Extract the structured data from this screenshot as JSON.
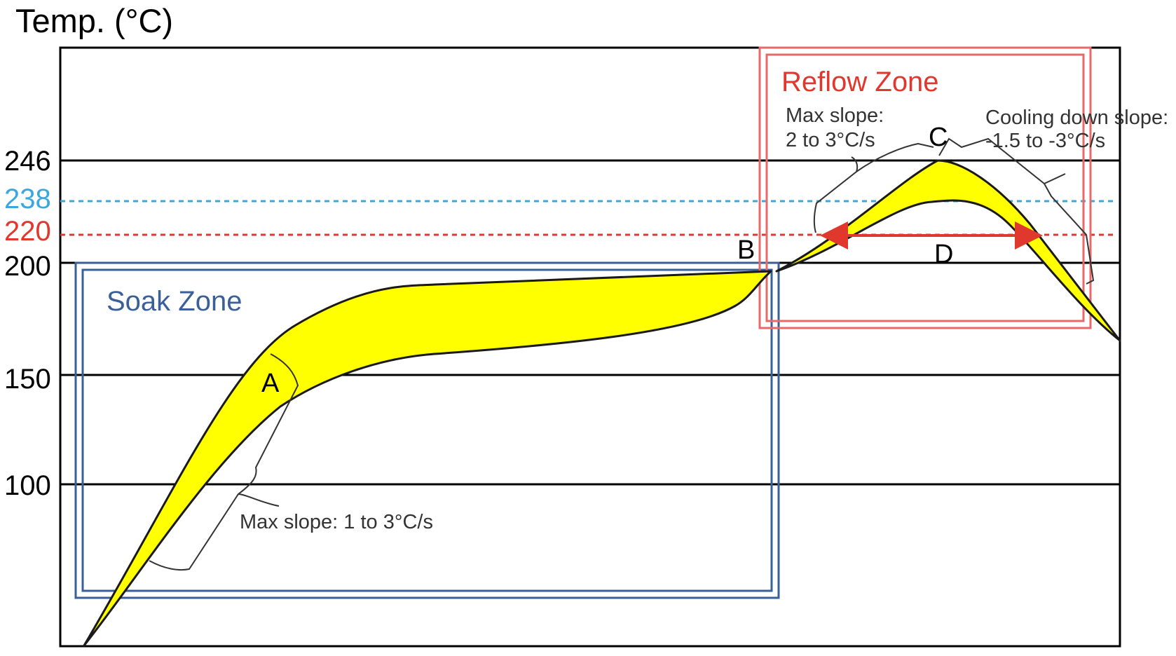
{
  "title": "Temp. (°C)",
  "y_ticks": [
    {
      "value": 246,
      "label": "246",
      "color": "#000000"
    },
    {
      "value": 238,
      "label": "238",
      "color": "#3aa7df"
    },
    {
      "value": 220,
      "label": "220",
      "color": "#e0382d"
    },
    {
      "value": 200,
      "label": "200",
      "color": "#000000"
    },
    {
      "value": 150,
      "label": "150",
      "color": "#000000"
    },
    {
      "value": 100,
      "label": "100",
      "color": "#000000"
    }
  ],
  "zones": {
    "soak": {
      "label": "Soak Zone",
      "color": "#3a5f99"
    },
    "reflow": {
      "label": "Reflow Zone",
      "color": "#e0382d"
    }
  },
  "annotations": {
    "soak_slope": "Max slope: 1 to 3°C/s",
    "reflow_slope_line1": "Max slope:",
    "reflow_slope_line2": "2 to 3°C/s",
    "cooling_line1": "Cooling down slope:",
    "cooling_line2": "-1.5 to -3°C/s"
  },
  "points": {
    "a": "A",
    "b": "B",
    "c": "C",
    "d": "D"
  },
  "colors": {
    "band_fill": "#ffff00",
    "band_outline": "#1a1a1a",
    "peak_line": "#3aa7df",
    "liquidus_line": "#e0382d",
    "duration_arrow": "#e0382d",
    "grid_line": "#000000"
  }
}
